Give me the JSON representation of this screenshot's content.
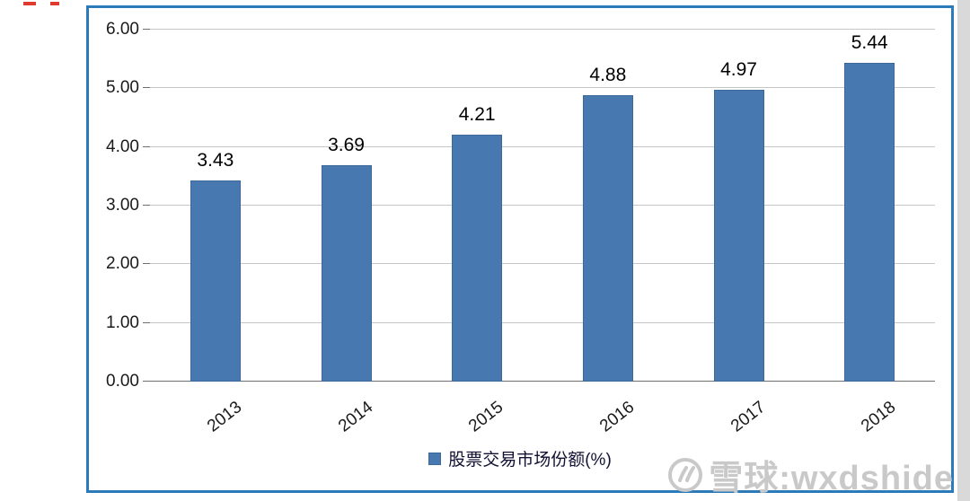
{
  "chart_data": {
    "type": "bar",
    "categories": [
      "2013",
      "2014",
      "2015",
      "2016",
      "2017",
      "2018"
    ],
    "values": [
      3.43,
      3.69,
      4.21,
      4.88,
      4.97,
      5.44
    ],
    "value_labels": [
      "3.43",
      "3.69",
      "4.21",
      "4.88",
      "4.97",
      "5.44"
    ],
    "title": "",
    "xlabel": "",
    "ylabel": "",
    "ylim": [
      0,
      6
    ],
    "ytick_step": 1,
    "ytick_labels": [
      "0.00",
      "1.00",
      "2.00",
      "3.00",
      "4.00",
      "5.00",
      "6.00"
    ],
    "grid": true,
    "legend": "股票交易市场份额(%)",
    "legend_position": "bottom",
    "bar_color": "#4779b0",
    "frame_color": "#2b7bba"
  },
  "watermark": {
    "logo": "xueqiu-logo",
    "text": "雪球:wxdshide"
  }
}
